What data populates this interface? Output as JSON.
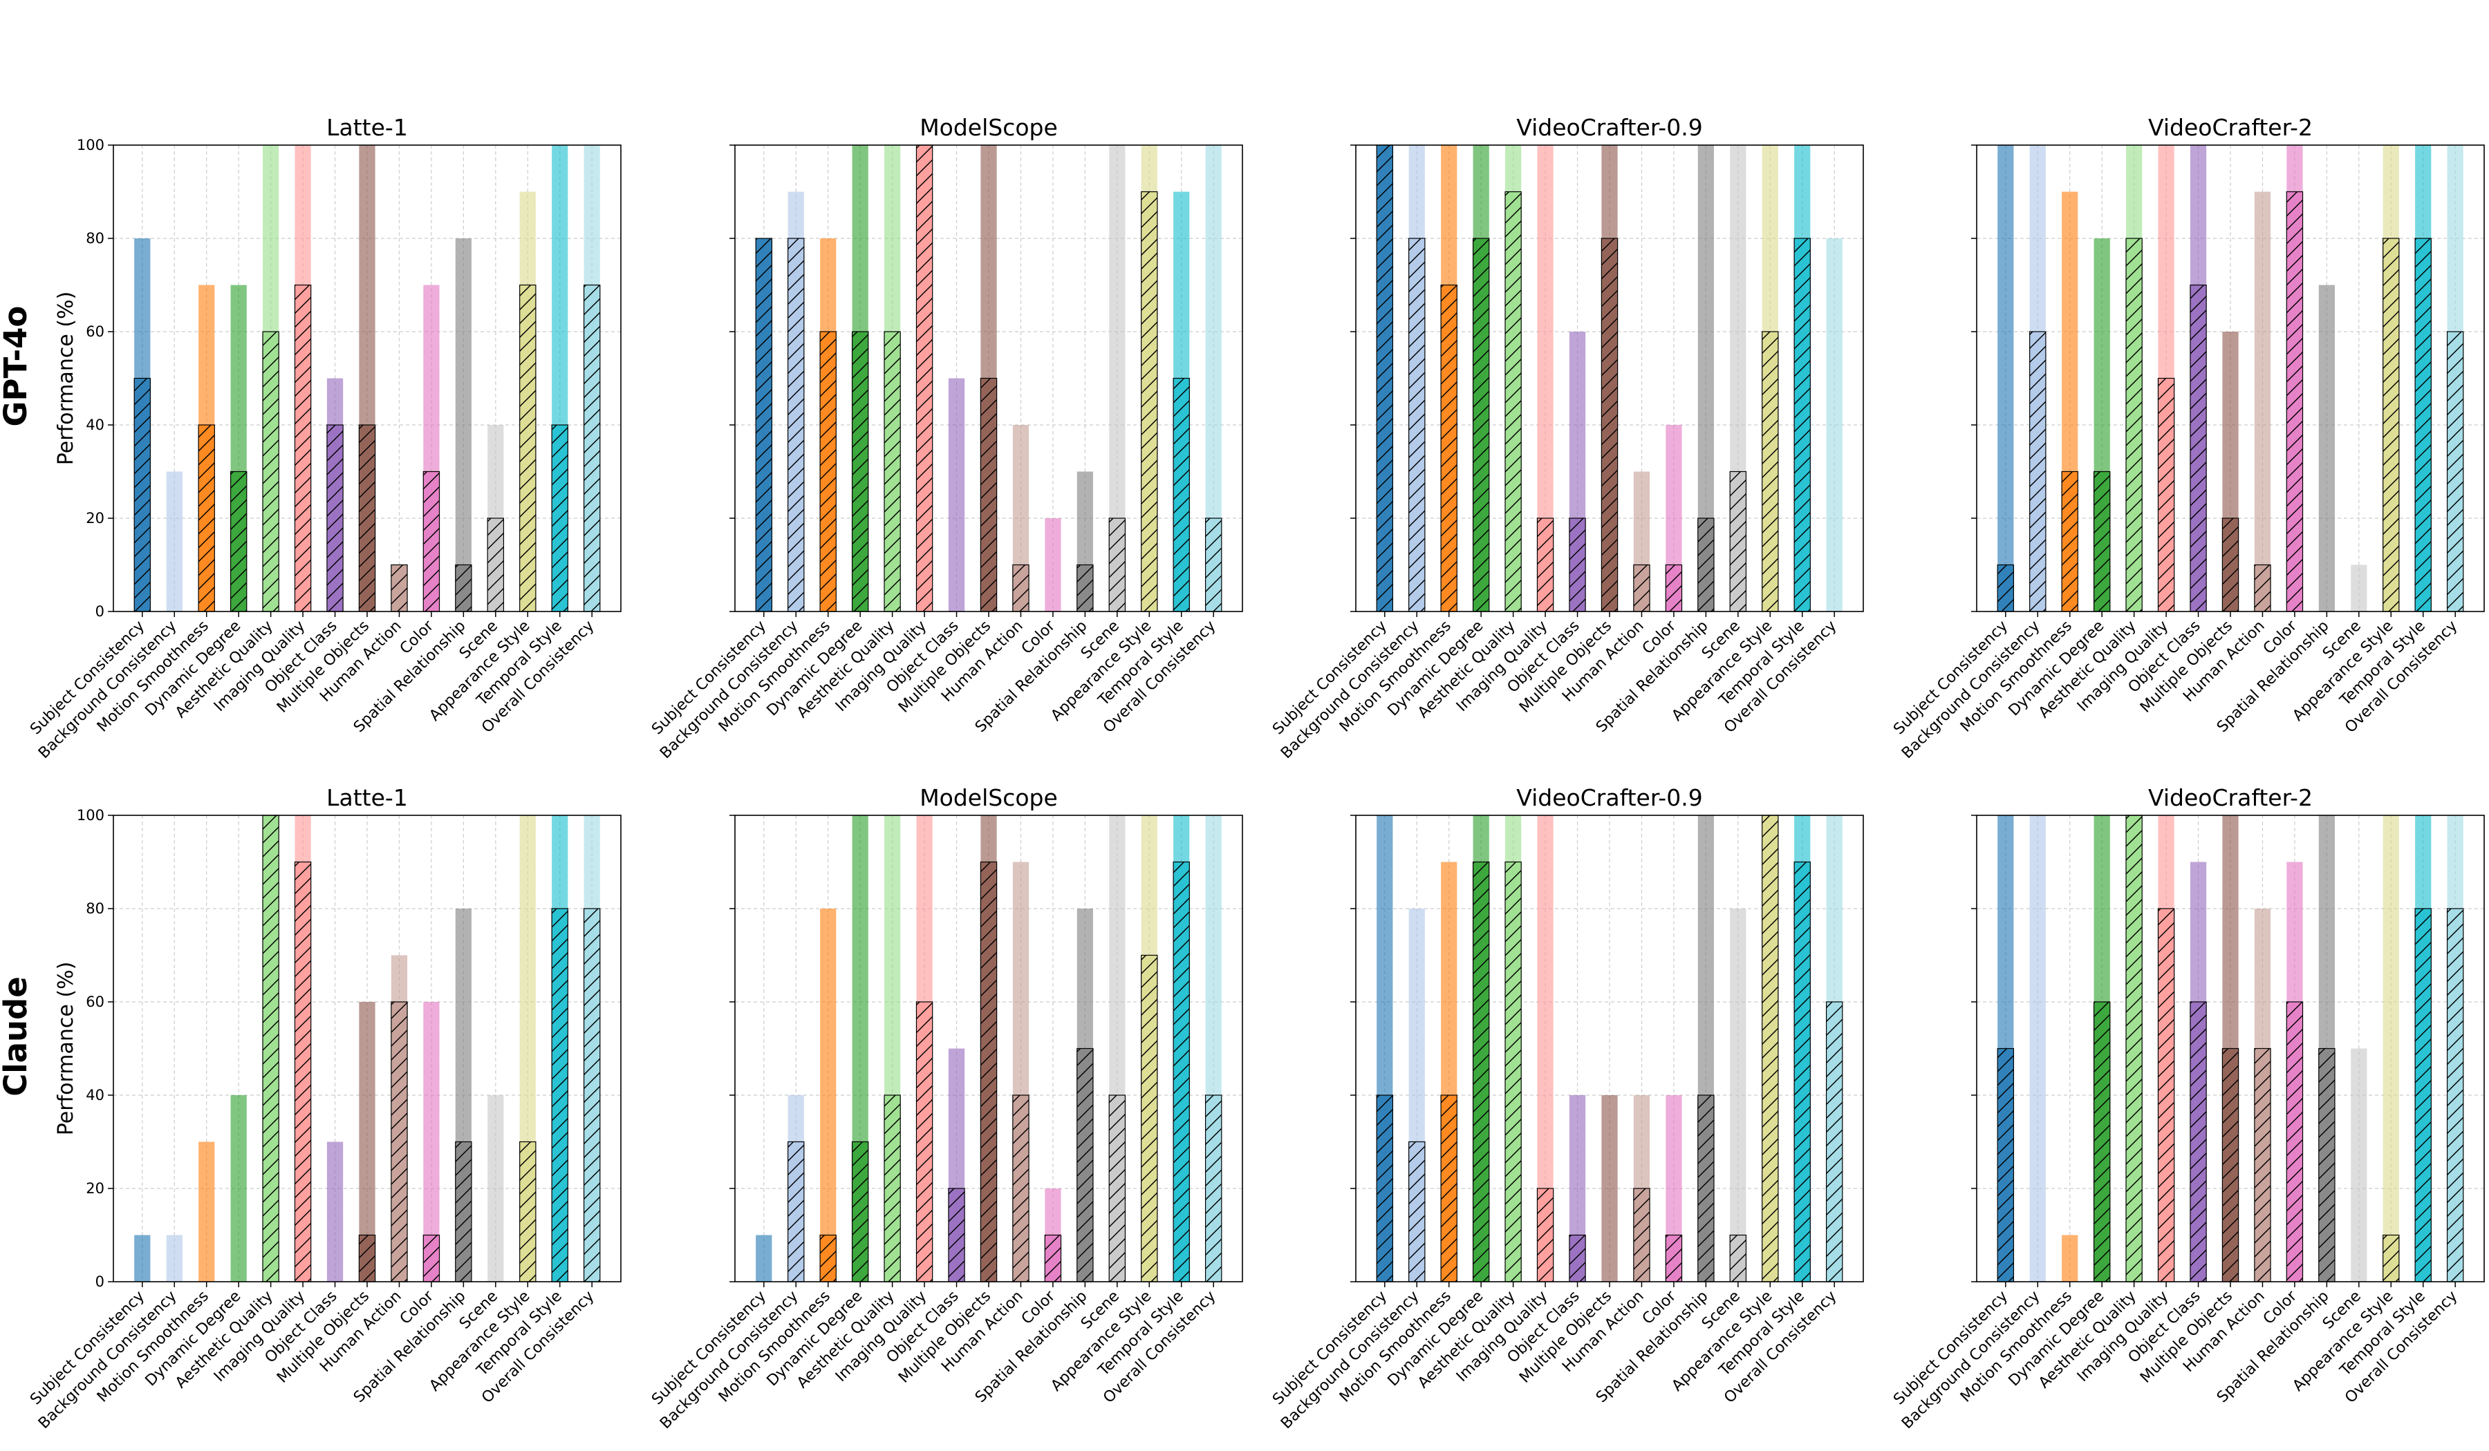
{
  "figure": {
    "rows": [
      "GPT-4o",
      "Claude"
    ],
    "ylabel": "Performance (%)",
    "yticks": [
      "0",
      "20",
      "40",
      "60",
      "80",
      "100"
    ]
  },
  "chart_data": [
    {
      "row": "GPT-4o",
      "type": "bar",
      "title": "Latte-1",
      "ylim": [
        0,
        100
      ],
      "grid": true,
      "categories": [
        "Subject Consistency",
        "Background Consistency",
        "Motion Smoothness",
        "Dynamic Degree",
        "Aesthetic Quality",
        "Imaging Quality",
        "Object Class",
        "Multiple Objects",
        "Human Action",
        "Color",
        "Spatial Relationship",
        "Scene",
        "Appearance Style",
        "Temporal Style",
        "Overall Consistency"
      ],
      "series": [
        {
          "name": "total",
          "values": [
            80,
            30,
            70,
            70,
            100,
            100,
            50,
            100,
            10,
            70,
            80,
            40,
            90,
            100,
            100
          ]
        },
        {
          "name": "hatched",
          "values": [
            50,
            0,
            40,
            30,
            60,
            70,
            40,
            40,
            10,
            30,
            10,
            20,
            70,
            40,
            70
          ]
        }
      ]
    },
    {
      "row": "GPT-4o",
      "type": "bar",
      "title": "ModelScope",
      "ylim": [
        0,
        100
      ],
      "grid": true,
      "categories": [
        "Subject Consistency",
        "Background Consistency",
        "Motion Smoothness",
        "Dynamic Degree",
        "Aesthetic Quality",
        "Imaging Quality",
        "Object Class",
        "Multiple Objects",
        "Human Action",
        "Color",
        "Spatial Relationship",
        "Scene",
        "Appearance Style",
        "Temporal Style",
        "Overall Consistency"
      ],
      "series": [
        {
          "name": "total",
          "values": [
            80,
            90,
            80,
            100,
            100,
            100,
            50,
            100,
            40,
            20,
            30,
            100,
            100,
            90,
            100
          ]
        },
        {
          "name": "hatched",
          "values": [
            80,
            80,
            60,
            60,
            60,
            100,
            0,
            50,
            10,
            0,
            10,
            20,
            90,
            50,
            20
          ]
        }
      ]
    },
    {
      "row": "GPT-4o",
      "type": "bar",
      "title": "VideoCrafter-0.9",
      "ylim": [
        0,
        100
      ],
      "grid": true,
      "categories": [
        "Subject Consistency",
        "Background Consistency",
        "Motion Smoothness",
        "Dynamic Degree",
        "Aesthetic Quality",
        "Imaging Quality",
        "Object Class",
        "Multiple Objects",
        "Human Action",
        "Color",
        "Spatial Relationship",
        "Scene",
        "Appearance Style",
        "Temporal Style",
        "Overall Consistency"
      ],
      "series": [
        {
          "name": "total",
          "values": [
            100,
            100,
            100,
            100,
            100,
            100,
            60,
            100,
            30,
            40,
            100,
            100,
            100,
            100,
            80
          ]
        },
        {
          "name": "hatched",
          "values": [
            100,
            80,
            70,
            80,
            90,
            20,
            20,
            80,
            10,
            10,
            20,
            30,
            60,
            80,
            0
          ]
        }
      ]
    },
    {
      "row": "GPT-4o",
      "type": "bar",
      "title": "VideoCrafter-2",
      "ylim": [
        0,
        100
      ],
      "grid": true,
      "categories": [
        "Subject Consistency",
        "Background Consistency",
        "Motion Smoothness",
        "Dynamic Degree",
        "Aesthetic Quality",
        "Imaging Quality",
        "Object Class",
        "Multiple Objects",
        "Human Action",
        "Color",
        "Spatial Relationship",
        "Scene",
        "Appearance Style",
        "Temporal Style",
        "Overall Consistency"
      ],
      "series": [
        {
          "name": "total",
          "values": [
            100,
            100,
            90,
            80,
            100,
            100,
            100,
            60,
            90,
            100,
            70,
            10,
            100,
            100,
            100
          ]
        },
        {
          "name": "hatched",
          "values": [
            10,
            60,
            30,
            30,
            80,
            50,
            70,
            20,
            10,
            90,
            0,
            0,
            80,
            80,
            60
          ]
        }
      ]
    },
    {
      "row": "Claude",
      "type": "bar",
      "title": "Latte-1",
      "ylim": [
        0,
        100
      ],
      "grid": true,
      "categories": [
        "Subject Consistency",
        "Background Consistency",
        "Motion Smoothness",
        "Dynamic Degree",
        "Aesthetic Quality",
        "Imaging Quality",
        "Object Class",
        "Multiple Objects",
        "Human Action",
        "Color",
        "Spatial Relationship",
        "Scene",
        "Appearance Style",
        "Temporal Style",
        "Overall Consistency"
      ],
      "series": [
        {
          "name": "total",
          "values": [
            10,
            10,
            30,
            40,
            100,
            100,
            30,
            60,
            70,
            60,
            80,
            40,
            100,
            100,
            100
          ]
        },
        {
          "name": "hatched",
          "values": [
            0,
            0,
            0,
            0,
            100,
            90,
            0,
            10,
            60,
            10,
            30,
            0,
            30,
            80,
            80
          ]
        }
      ]
    },
    {
      "row": "Claude",
      "type": "bar",
      "title": "ModelScope",
      "ylim": [
        0,
        100
      ],
      "grid": true,
      "categories": [
        "Subject Consistency",
        "Background Consistency",
        "Motion Smoothness",
        "Dynamic Degree",
        "Aesthetic Quality",
        "Imaging Quality",
        "Object Class",
        "Multiple Objects",
        "Human Action",
        "Color",
        "Spatial Relationship",
        "Scene",
        "Appearance Style",
        "Temporal Style",
        "Overall Consistency"
      ],
      "series": [
        {
          "name": "total",
          "values": [
            10,
            40,
            80,
            100,
            100,
            100,
            50,
            100,
            90,
            20,
            80,
            100,
            100,
            100,
            100
          ]
        },
        {
          "name": "hatched",
          "values": [
            0,
            30,
            10,
            30,
            40,
            60,
            20,
            90,
            40,
            10,
            50,
            40,
            70,
            90,
            40
          ]
        }
      ]
    },
    {
      "row": "Claude",
      "type": "bar",
      "title": "VideoCrafter-0.9",
      "ylim": [
        0,
        100
      ],
      "grid": true,
      "categories": [
        "Subject Consistency",
        "Background Consistency",
        "Motion Smoothness",
        "Dynamic Degree",
        "Aesthetic Quality",
        "Imaging Quality",
        "Object Class",
        "Multiple Objects",
        "Human Action",
        "Color",
        "Spatial Relationship",
        "Scene",
        "Appearance Style",
        "Temporal Style",
        "Overall Consistency"
      ],
      "series": [
        {
          "name": "total",
          "values": [
            100,
            80,
            90,
            100,
            100,
            100,
            40,
            40,
            40,
            40,
            100,
            80,
            100,
            100,
            100
          ]
        },
        {
          "name": "hatched",
          "values": [
            40,
            30,
            40,
            90,
            90,
            20,
            10,
            0,
            20,
            10,
            40,
            10,
            100,
            90,
            60
          ]
        }
      ]
    },
    {
      "row": "Claude",
      "type": "bar",
      "title": "VideoCrafter-2",
      "ylim": [
        0,
        100
      ],
      "grid": true,
      "categories": [
        "Subject Consistency",
        "Background Consistency",
        "Motion Smoothness",
        "Dynamic Degree",
        "Aesthetic Quality",
        "Imaging Quality",
        "Object Class",
        "Multiple Objects",
        "Human Action",
        "Color",
        "Spatial Relationship",
        "Scene",
        "Appearance Style",
        "Temporal Style",
        "Overall Consistency"
      ],
      "series": [
        {
          "name": "total",
          "values": [
            100,
            100,
            10,
            100,
            100,
            100,
            90,
            100,
            80,
            90,
            100,
            50,
            100,
            100,
            100
          ]
        },
        {
          "name": "hatched",
          "values": [
            50,
            0,
            0,
            60,
            100,
            80,
            60,
            50,
            50,
            60,
            50,
            0,
            10,
            80,
            80
          ]
        }
      ]
    }
  ],
  "colors": {
    "dark": [
      "#1f77b4",
      "#aec7e8",
      "#ff7f0e",
      "#2ca02c",
      "#98df8a",
      "#ff9896",
      "#9467bd",
      "#8c564b",
      "#c49c94",
      "#e377c2",
      "#7f7f7f",
      "#c7c7c7",
      "#dbdb8d",
      "#17becf",
      "#9edae5"
    ],
    "light": [
      "#1f77b4",
      "#aec7e8",
      "#ff7f0e",
      "#2ca02c",
      "#98df8a",
      "#ff9896",
      "#9467bd",
      "#8c564b",
      "#c49c94",
      "#e377c2",
      "#7f7f7f",
      "#c7c7c7",
      "#dbdb8d",
      "#17becf",
      "#9edae5"
    ]
  }
}
